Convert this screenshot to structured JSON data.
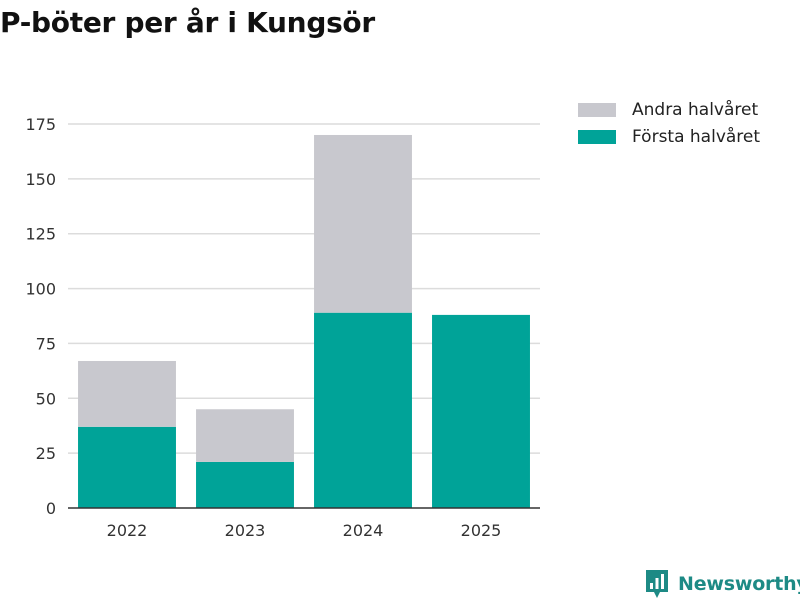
{
  "title": "P-böter per år i Kungsör",
  "chart_data": {
    "type": "bar",
    "stacked": true,
    "title": "P-böter per år i Kungsör",
    "categories": [
      "2022",
      "2023",
      "2024",
      "2025"
    ],
    "series": [
      {
        "name": "Första halvåret",
        "color": "#00a398",
        "values": [
          37,
          21,
          89,
          88
        ]
      },
      {
        "name": "Andra halvåret",
        "color": "#c8c8ce",
        "values": [
          30,
          24,
          81,
          0
        ]
      }
    ],
    "legend_order": [
      "Andra halvåret",
      "Första halvåret"
    ],
    "yticks": [
      0,
      25,
      50,
      75,
      100,
      125,
      150,
      175
    ],
    "ylim": [
      0,
      175
    ],
    "xlabel": "",
    "ylabel": "",
    "grid": true,
    "legend_position": "top-right"
  },
  "brand": {
    "name": "Newsworthy",
    "color": "#1d8a85"
  }
}
